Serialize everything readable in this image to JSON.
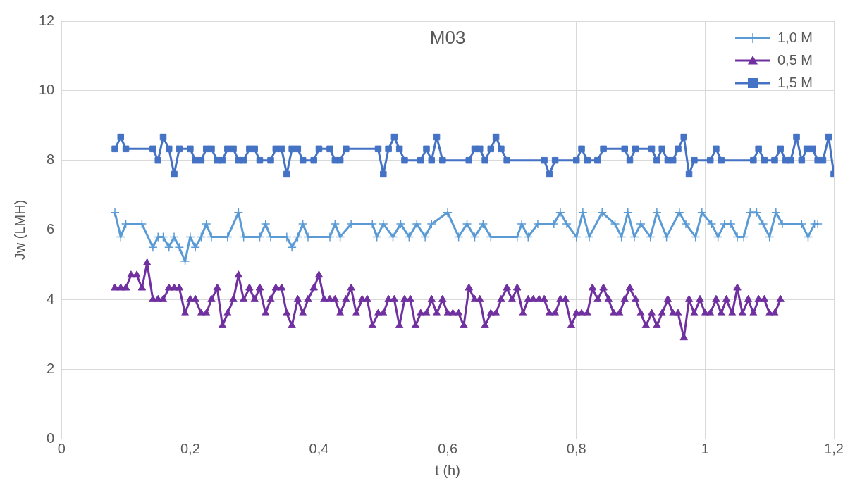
{
  "chart_data": {
    "type": "line",
    "title": "M03",
    "xlabel": "t (h)",
    "ylabel": "Jw (LMH)",
    "xlim": [
      0,
      1.2
    ],
    "xticks": [
      0,
      {
        "value": 0.2,
        "label": "0,2"
      },
      {
        "value": 0.4,
        "label": "0,4"
      },
      {
        "value": 0.6,
        "label": "0,6"
      },
      {
        "value": 0.8,
        "label": "0,8"
      },
      1,
      {
        "value": 1.2,
        "label": "1,2"
      }
    ],
    "ylim": [
      0,
      12
    ],
    "yticks": [
      0,
      2,
      4,
      6,
      8,
      10,
      12
    ],
    "grid": true,
    "legend": "top right",
    "line_style": "solid",
    "series": [
      {
        "name": "1,0 M",
        "color": "#5b9bd5",
        "marker": "cross",
        "x": [
          0.083,
          0.092,
          0.1,
          0.125,
          0.142,
          0.15,
          0.158,
          0.167,
          0.175,
          0.183,
          0.192,
          0.2,
          0.208,
          0.217,
          0.225,
          0.233,
          0.258,
          0.275,
          0.283,
          0.308,
          0.317,
          0.325,
          0.35,
          0.358,
          0.367,
          0.375,
          0.383,
          0.417,
          0.425,
          0.433,
          0.45,
          0.483,
          0.49,
          0.5,
          0.515,
          0.527,
          0.54,
          0.552,
          0.565,
          0.575,
          0.6,
          0.617,
          0.63,
          0.642,
          0.655,
          0.667,
          0.708,
          0.715,
          0.725,
          0.74,
          0.765,
          0.775,
          0.785,
          0.8,
          0.81,
          0.82,
          0.84,
          0.86,
          0.87,
          0.88,
          0.89,
          0.9,
          0.915,
          0.925,
          0.94,
          0.96,
          0.97,
          0.985,
          0.995,
          1.01,
          1.02,
          1.03,
          1.04,
          1.05,
          1.06,
          1.07,
          1.08,
          1.09,
          1.1,
          1.11,
          1.12,
          1.15,
          1.16,
          1.17,
          1.175
        ],
        "values": [
          6.5,
          5.8,
          6.17,
          6.17,
          5.5,
          5.8,
          5.8,
          5.5,
          5.8,
          5.5,
          5.1,
          5.8,
          5.5,
          5.8,
          6.17,
          5.8,
          5.8,
          6.5,
          5.8,
          5.8,
          6.17,
          5.8,
          5.8,
          5.5,
          5.8,
          6.17,
          5.8,
          5.8,
          6.17,
          5.8,
          6.17,
          6.17,
          5.8,
          6.17,
          5.8,
          6.17,
          5.8,
          6.17,
          5.8,
          6.17,
          6.5,
          5.8,
          6.17,
          5.8,
          6.17,
          5.8,
          5.8,
          6.17,
          5.8,
          6.17,
          6.17,
          6.5,
          6.17,
          5.8,
          6.5,
          5.8,
          6.5,
          6.17,
          5.8,
          6.5,
          5.8,
          6.17,
          5.8,
          6.5,
          5.8,
          6.5,
          6.17,
          5.8,
          6.5,
          6.17,
          5.8,
          6.17,
          6.17,
          5.8,
          5.8,
          6.5,
          6.5,
          6.17,
          5.8,
          6.5,
          6.17,
          6.17,
          5.8,
          6.17,
          6.17
        ]
      },
      {
        "name": "0,5 M",
        "color": "#7030a0",
        "marker": "triangle",
        "x": [
          0.083,
          0.092,
          0.1,
          0.108,
          0.117,
          0.125,
          0.133,
          0.142,
          0.15,
          0.158,
          0.167,
          0.175,
          0.183,
          0.192,
          0.2,
          0.208,
          0.217,
          0.225,
          0.233,
          0.242,
          0.25,
          0.258,
          0.267,
          0.275,
          0.283,
          0.292,
          0.3,
          0.308,
          0.317,
          0.325,
          0.333,
          0.342,
          0.35,
          0.358,
          0.367,
          0.375,
          0.383,
          0.392,
          0.4,
          0.408,
          0.417,
          0.425,
          0.433,
          0.442,
          0.45,
          0.458,
          0.467,
          0.475,
          0.483,
          0.492,
          0.5,
          0.508,
          0.517,
          0.525,
          0.533,
          0.542,
          0.55,
          0.558,
          0.567,
          0.575,
          0.583,
          0.592,
          0.6,
          0.608,
          0.617,
          0.625,
          0.633,
          0.642,
          0.65,
          0.658,
          0.667,
          0.675,
          0.683,
          0.692,
          0.7,
          0.708,
          0.717,
          0.725,
          0.733,
          0.742,
          0.75,
          0.758,
          0.767,
          0.775,
          0.783,
          0.792,
          0.8,
          0.808,
          0.817,
          0.825,
          0.833,
          0.842,
          0.85,
          0.858,
          0.867,
          0.875,
          0.883,
          0.892,
          0.9,
          0.908,
          0.917,
          0.925,
          0.933,
          0.942,
          0.95,
          0.958,
          0.967,
          0.975,
          0.983,
          0.992,
          1.0,
          1.008,
          1.017,
          1.025,
          1.033,
          1.042,
          1.05,
          1.058,
          1.067,
          1.075,
          1.083,
          1.092,
          1.1,
          1.108,
          1.117
        ],
        "values": [
          4.33,
          4.33,
          4.33,
          4.7,
          4.7,
          4.33,
          5.05,
          4.0,
          4.0,
          4.0,
          4.33,
          4.33,
          4.33,
          3.6,
          4.0,
          4.0,
          3.6,
          3.6,
          4.0,
          4.33,
          3.25,
          3.6,
          4.0,
          4.7,
          4.0,
          4.33,
          4.0,
          4.33,
          3.6,
          4.0,
          4.33,
          4.33,
          3.6,
          3.25,
          4.0,
          3.6,
          4.0,
          4.33,
          4.7,
          4.0,
          4.0,
          4.0,
          3.6,
          4.0,
          4.33,
          3.6,
          4.0,
          4.0,
          3.25,
          3.6,
          3.6,
          4.0,
          4.0,
          3.25,
          4.0,
          4.0,
          3.25,
          3.6,
          3.6,
          4.0,
          3.6,
          4.0,
          3.6,
          3.6,
          3.6,
          3.25,
          4.33,
          4.0,
          4.0,
          3.25,
          3.6,
          3.6,
          4.0,
          4.33,
          4.0,
          4.33,
          3.6,
          4.0,
          4.0,
          4.0,
          4.0,
          3.6,
          3.6,
          4.0,
          4.0,
          3.25,
          3.6,
          3.6,
          3.6,
          4.33,
          4.0,
          4.33,
          4.0,
          3.6,
          3.6,
          4.0,
          4.33,
          4.0,
          3.6,
          3.25,
          3.6,
          3.25,
          3.6,
          4.0,
          3.6,
          3.6,
          2.9,
          4.0,
          3.6,
          4.0,
          3.6,
          3.6,
          4.0,
          3.6,
          4.0,
          3.6,
          4.33,
          3.6,
          4.0,
          3.6,
          4.0,
          4.0,
          3.6,
          3.6,
          4.0
        ]
      },
      {
        "name": "1,5 M",
        "color": "#4472c4",
        "marker": "square",
        "x": [
          0.083,
          0.092,
          0.1,
          0.142,
          0.15,
          0.158,
          0.167,
          0.175,
          0.183,
          0.2,
          0.208,
          0.217,
          0.225,
          0.233,
          0.242,
          0.25,
          0.258,
          0.267,
          0.275,
          0.283,
          0.292,
          0.3,
          0.308,
          0.325,
          0.333,
          0.342,
          0.35,
          0.358,
          0.367,
          0.375,
          0.392,
          0.4,
          0.417,
          0.425,
          0.433,
          0.442,
          0.492,
          0.5,
          0.508,
          0.517,
          0.525,
          0.533,
          0.558,
          0.567,
          0.575,
          0.583,
          0.592,
          0.633,
          0.642,
          0.65,
          0.658,
          0.667,
          0.675,
          0.683,
          0.692,
          0.75,
          0.758,
          0.767,
          0.8,
          0.808,
          0.817,
          0.833,
          0.842,
          0.875,
          0.883,
          0.892,
          0.917,
          0.925,
          0.933,
          0.942,
          0.95,
          0.958,
          0.967,
          0.975,
          0.983,
          1.008,
          1.017,
          1.025,
          1.075,
          1.083,
          1.092,
          1.108,
          1.117,
          1.125,
          1.133,
          1.142,
          1.15,
          1.158,
          1.167,
          1.175,
          1.183,
          1.192,
          1.2
        ],
        "values": [
          8.33,
          8.67,
          8.33,
          8.33,
          8.0,
          8.67,
          8.33,
          7.6,
          8.33,
          8.33,
          8.0,
          8.0,
          8.33,
          8.33,
          8.0,
          8.0,
          8.33,
          8.33,
          8.0,
          8.0,
          8.33,
          8.33,
          8.0,
          8.0,
          8.33,
          8.33,
          7.6,
          8.33,
          8.33,
          8.0,
          8.0,
          8.33,
          8.33,
          8.0,
          8.0,
          8.33,
          8.33,
          7.6,
          8.33,
          8.67,
          8.33,
          8.0,
          8.0,
          8.33,
          8.0,
          8.67,
          8.0,
          8.0,
          8.33,
          8.33,
          8.0,
          8.33,
          8.67,
          8.33,
          8.0,
          8.0,
          7.6,
          8.0,
          8.0,
          8.33,
          8.0,
          8.0,
          8.33,
          8.33,
          8.0,
          8.33,
          8.33,
          8.0,
          8.33,
          8.0,
          8.0,
          8.33,
          8.67,
          7.6,
          8.0,
          8.0,
          8.33,
          8.0,
          8.0,
          8.33,
          8.0,
          8.0,
          8.33,
          8.0,
          8.0,
          8.67,
          8.0,
          8.33,
          8.33,
          8.0,
          8.0,
          8.67,
          7.6
        ]
      }
    ]
  }
}
